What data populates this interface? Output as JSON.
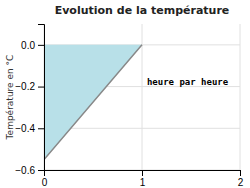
{
  "chart_data": {
    "type": "area",
    "title": "Evolution de la température",
    "ylabel": "Température en °C",
    "x": [
      0,
      0,
      1
    ],
    "series": [
      {
        "type": "area",
        "color": "#b8e0e8",
        "values": [
          0,
          -0.55,
          0
        ]
      },
      {
        "type": "line",
        "color": "#888888",
        "values": [
          0,
          -0.55,
          0
        ]
      }
    ],
    "annotations": [
      {
        "text": "heure par heure",
        "x": 1.05,
        "y": -0.175
      }
    ],
    "xlim": [
      0,
      2
    ],
    "ylim": [
      -0.6,
      0.1
    ],
    "xticks": [
      0,
      1,
      2
    ],
    "yticks": [
      {
        "value": -0.6,
        "label": "−0.6"
      },
      {
        "value": -0.4,
        "label": "−0.4"
      },
      {
        "value": -0.2,
        "label": "−0.2"
      },
      {
        "value": 0.0,
        "label": "0.0"
      }
    ],
    "grid": true
  }
}
